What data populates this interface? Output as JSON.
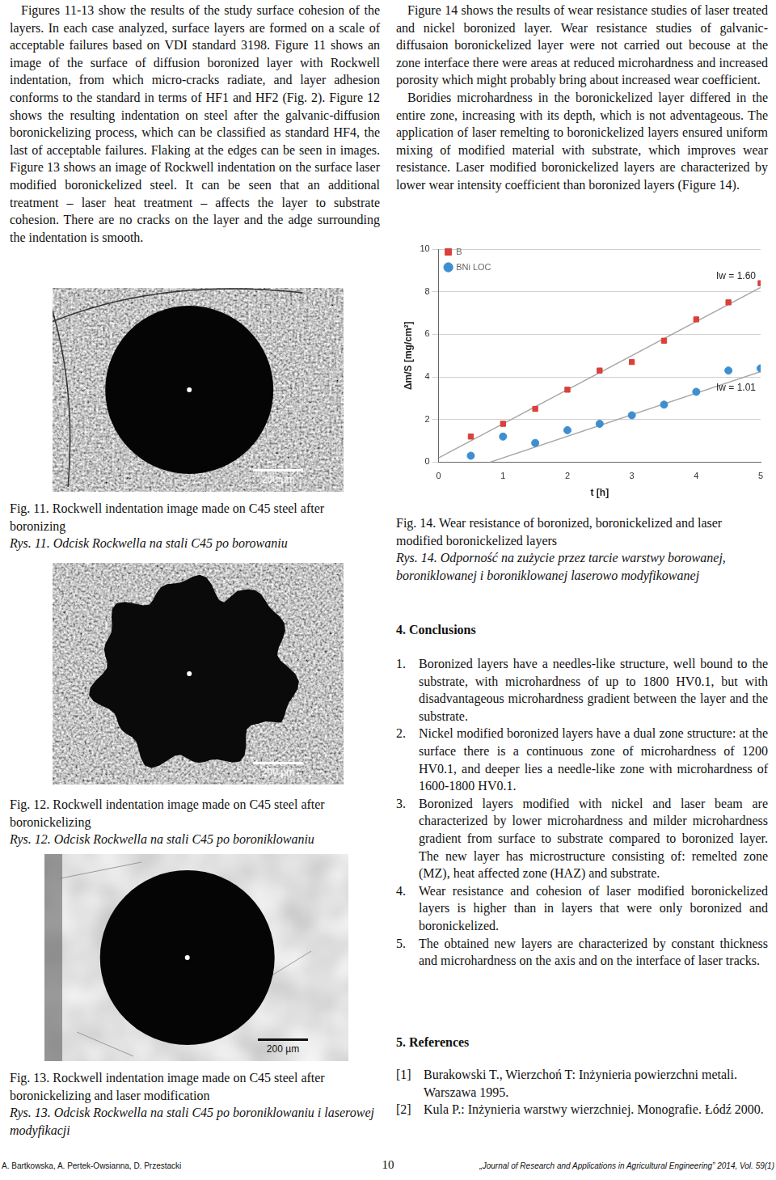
{
  "left_column": {
    "paragraph": "Figures 11-13 show the results of the study surface cohesion of the layers. In each case analyzed, surface layers are formed on a scale of acceptable failures based on VDI standard 3198. Figure 11 shows an image of the surface of diffusion boronized layer with Rockwell indentation, from which micro-cracks radiate, and layer adhesion conforms to the standard in terms of HF1 and HF2 (Fig. 2). Figure 12 shows the resulting indentation on steel after the galvanic-diffusion boronickelizing process, which can be classified as standard HF4, the last of acceptable failures. Flaking at the edges can be seen in images. Figure 13 shows an image of Rockwell indentation on the surface laser modified boronickelized steel. It can be seen that an additional treatment – laser heat treatment – affects the layer to substrate cohesion. There are no cracks on the layer and the adge surrounding the indentation is smooth.",
    "figures": [
      {
        "scale_bar": "200 µm",
        "caption": "Fig. 11. Rockwell indentation image made on C45 steel after boronizing",
        "caption_pl": "Rys. 11. Odcisk Rockwella na stali C45 po borowaniu"
      },
      {
        "scale_bar": "200 µm",
        "caption": "Fig. 12. Rockwell indentation image made on C45 steel after boronickelizing",
        "caption_pl": "Rys. 12. Odcisk Rockwella na stali C45 po boroniklowaniu"
      },
      {
        "scale_bar": "200 µm",
        "caption": "Fig. 13. Rockwell indentation image made on C45 steel after boronickelizing and laser modification",
        "caption_pl": "Rys. 13. Odcisk Rockwella na stali C45 po boroniklowaniu i laserowej modyfikacji"
      }
    ]
  },
  "right_column": {
    "paragraphs": [
      "Figure 14 shows the results of wear resistance studies of laser treated and nickel boronized layer. Wear resistance studies of galvanic-diffusaion boronickelized layer were not carried out becouse at the zone interface there were areas at reduced microhardness and increased porosity which might probably bring about increased wear coefficient.",
      "Boridies microhardness in the boronickelized layer differed in the entire zone, increasing with its depth, which is not adventageous. The application of laser remelting to boronickelized layers ensured uniform mixing of modified material with substrate, which improves wear resistance. Laser modified boronickelized layers are characterized by lower wear intensity coefficient than boronized layers (Figure 14)."
    ],
    "figure": {
      "caption": "Fig. 14. Wear resistance of boronized, boronickelized and laser modified boronickelized layers",
      "caption_pl": "Rys. 14. Odporność na zużycie przez tarcie warstwy borowanej, boroniklowanej i boroniklowanej laserowo modyfikowanej"
    },
    "conclusions": {
      "heading": "4. Conclusions",
      "items": [
        {
          "n": "1.",
          "text": "Boronized layers have a needles-like structure, well bound to the substrate, with microhardness of up to 1800 HV0.1, but with disadvantageous microhardness gradient between the layer and the substrate."
        },
        {
          "n": "2.",
          "text": "Nickel modified boronized layers have a dual zone structure: at the surface there is a continuous zone of microhardness of 1200 HV0.1, and deeper lies a needle-like zone with microhardness of 1600-1800 HV0.1."
        },
        {
          "n": "3.",
          "text": "Boronized layers modified with nickel and laser beam are characterized by lower microhardness and milder microhardness gradient from surface to substrate compared to boronized layer. The new layer has microstructure consisting of: remelted zone (MZ), heat affected zone (HAZ) and substrate."
        },
        {
          "n": "4.",
          "text": "Wear resistance and cohesion of laser modified boronickelized layers is higher than in layers that were only boronized and boronickelized."
        },
        {
          "n": "5.",
          "text": "The obtained new layers are characterized by constant thickness and microhardness on the axis and on the interface of laser tracks."
        }
      ]
    },
    "references": {
      "heading": "5. References",
      "items": [
        {
          "n": "[1]",
          "text": "Burakowski T., Wierzchoń T: Inżynieria powierzchni metali. Warszawa 1995."
        },
        {
          "n": "[2]",
          "text": "Kula P.: Inżynieria warstwy wierzchniej. Monografie. Łódź 2000."
        }
      ]
    }
  },
  "chart_data": {
    "type": "scatter",
    "x_label": "t [h]",
    "y_label": "Δm/S [mg/cm²]",
    "xlim": [
      0,
      5
    ],
    "ylim": [
      0,
      10
    ],
    "xticks": [
      0,
      1,
      2,
      3,
      4,
      5
    ],
    "yticks": [
      0,
      2,
      4,
      6,
      8,
      10
    ],
    "grid": true,
    "legend": "upper left",
    "series": [
      {
        "name": "B",
        "color": "#d9413a",
        "marker": "square",
        "x": [
          0.5,
          1,
          1.5,
          2,
          2.5,
          3,
          3.5,
          4,
          4.5,
          5
        ],
        "values": [
          1.2,
          1.8,
          2.5,
          3.4,
          4.3,
          4.7,
          5.7,
          6.7,
          7.5,
          8.4
        ],
        "trend_x": [
          0,
          5
        ],
        "trend": [
          0.2,
          8.2
        ],
        "annotation": "Iw = 1.60"
      },
      {
        "name": "BNi LOC",
        "color": "#3d8fd1",
        "marker": "circle",
        "x": [
          0.5,
          1,
          1.5,
          2,
          2.5,
          3,
          3.5,
          4,
          4.5,
          5
        ],
        "values": [
          0.3,
          1.2,
          0.9,
          1.5,
          1.8,
          2.2,
          2.7,
          3.3,
          4.3,
          4.4
        ],
        "trend_x": [
          0.8,
          5
        ],
        "trend": [
          0,
          4.25
        ],
        "annotation": "Iw = 1.01"
      }
    ]
  },
  "footer": {
    "authors": "A. Bartkowska, A. Pertek-Owsianna, D. Przestacki",
    "page": "10",
    "journal": "„Journal of Research and Applications in Agricultural Engineering” 2014, Vol. 59(1)"
  }
}
